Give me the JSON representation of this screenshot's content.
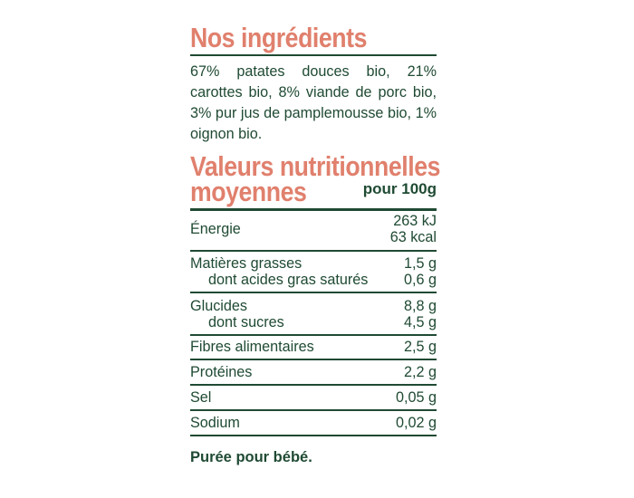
{
  "ingredients": {
    "title": "Nos ingrédients",
    "lines": [
      "67% patates douces bio, 21%",
      "carottes bio, 8% viande de porc bio,",
      "3% pur jus de pamplemousse bio, 1%",
      "oignon bio."
    ]
  },
  "nutrition": {
    "title_line1": "Valeurs nutritionnelles",
    "title_line2": "moyennes",
    "per_label": "pour 100g",
    "energy": {
      "label": "Énergie",
      "kj": "263 kJ",
      "kcal": "63 kcal"
    },
    "fat": {
      "label": "Matières grasses",
      "value": "1,5 g",
      "sub_label": "dont acides gras saturés",
      "sub_value": "0,6 g"
    },
    "carbs": {
      "label": "Glucides",
      "value": "8,8 g",
      "sub_label": "dont sucres",
      "sub_value": "4,5 g"
    },
    "fibre": {
      "label": "Fibres alimentaires",
      "value": "2,5 g"
    },
    "protein": {
      "label": "Protéines",
      "value": "2,2 g"
    },
    "salt": {
      "label": "Sel",
      "value": "0,05 g"
    },
    "sodium": {
      "label": "Sodium",
      "value": "0,02 g"
    }
  },
  "footer": "Purée pour bébé.",
  "colors": {
    "heading": "#e0806d",
    "text": "#1f4a33",
    "background": "#ffffff"
  }
}
